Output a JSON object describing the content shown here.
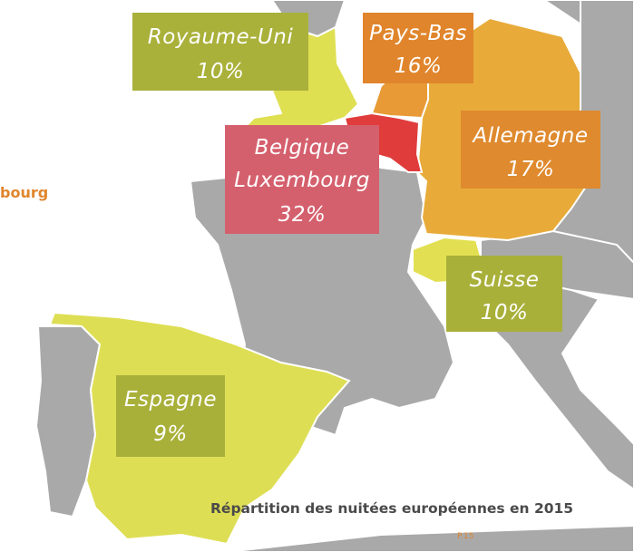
{
  "partial_label": "bourg",
  "regions": [
    {
      "name": [
        "Royaume-Uni"
      ],
      "value": "10%"
    },
    {
      "name": [
        "Pays-Bas"
      ],
      "value": "16%"
    },
    {
      "name": [
        "Belgique",
        "Luxembourg"
      ],
      "value": "32%"
    },
    {
      "name": [
        "Allemagne"
      ],
      "value": "17%"
    },
    {
      "name": [
        "Suisse"
      ],
      "value": "10%"
    },
    {
      "name": [
        "Espagne"
      ],
      "value": "9%"
    }
  ],
  "caption": "Répartition des nuitées européennes en 2015",
  "page_number": "P.15"
}
